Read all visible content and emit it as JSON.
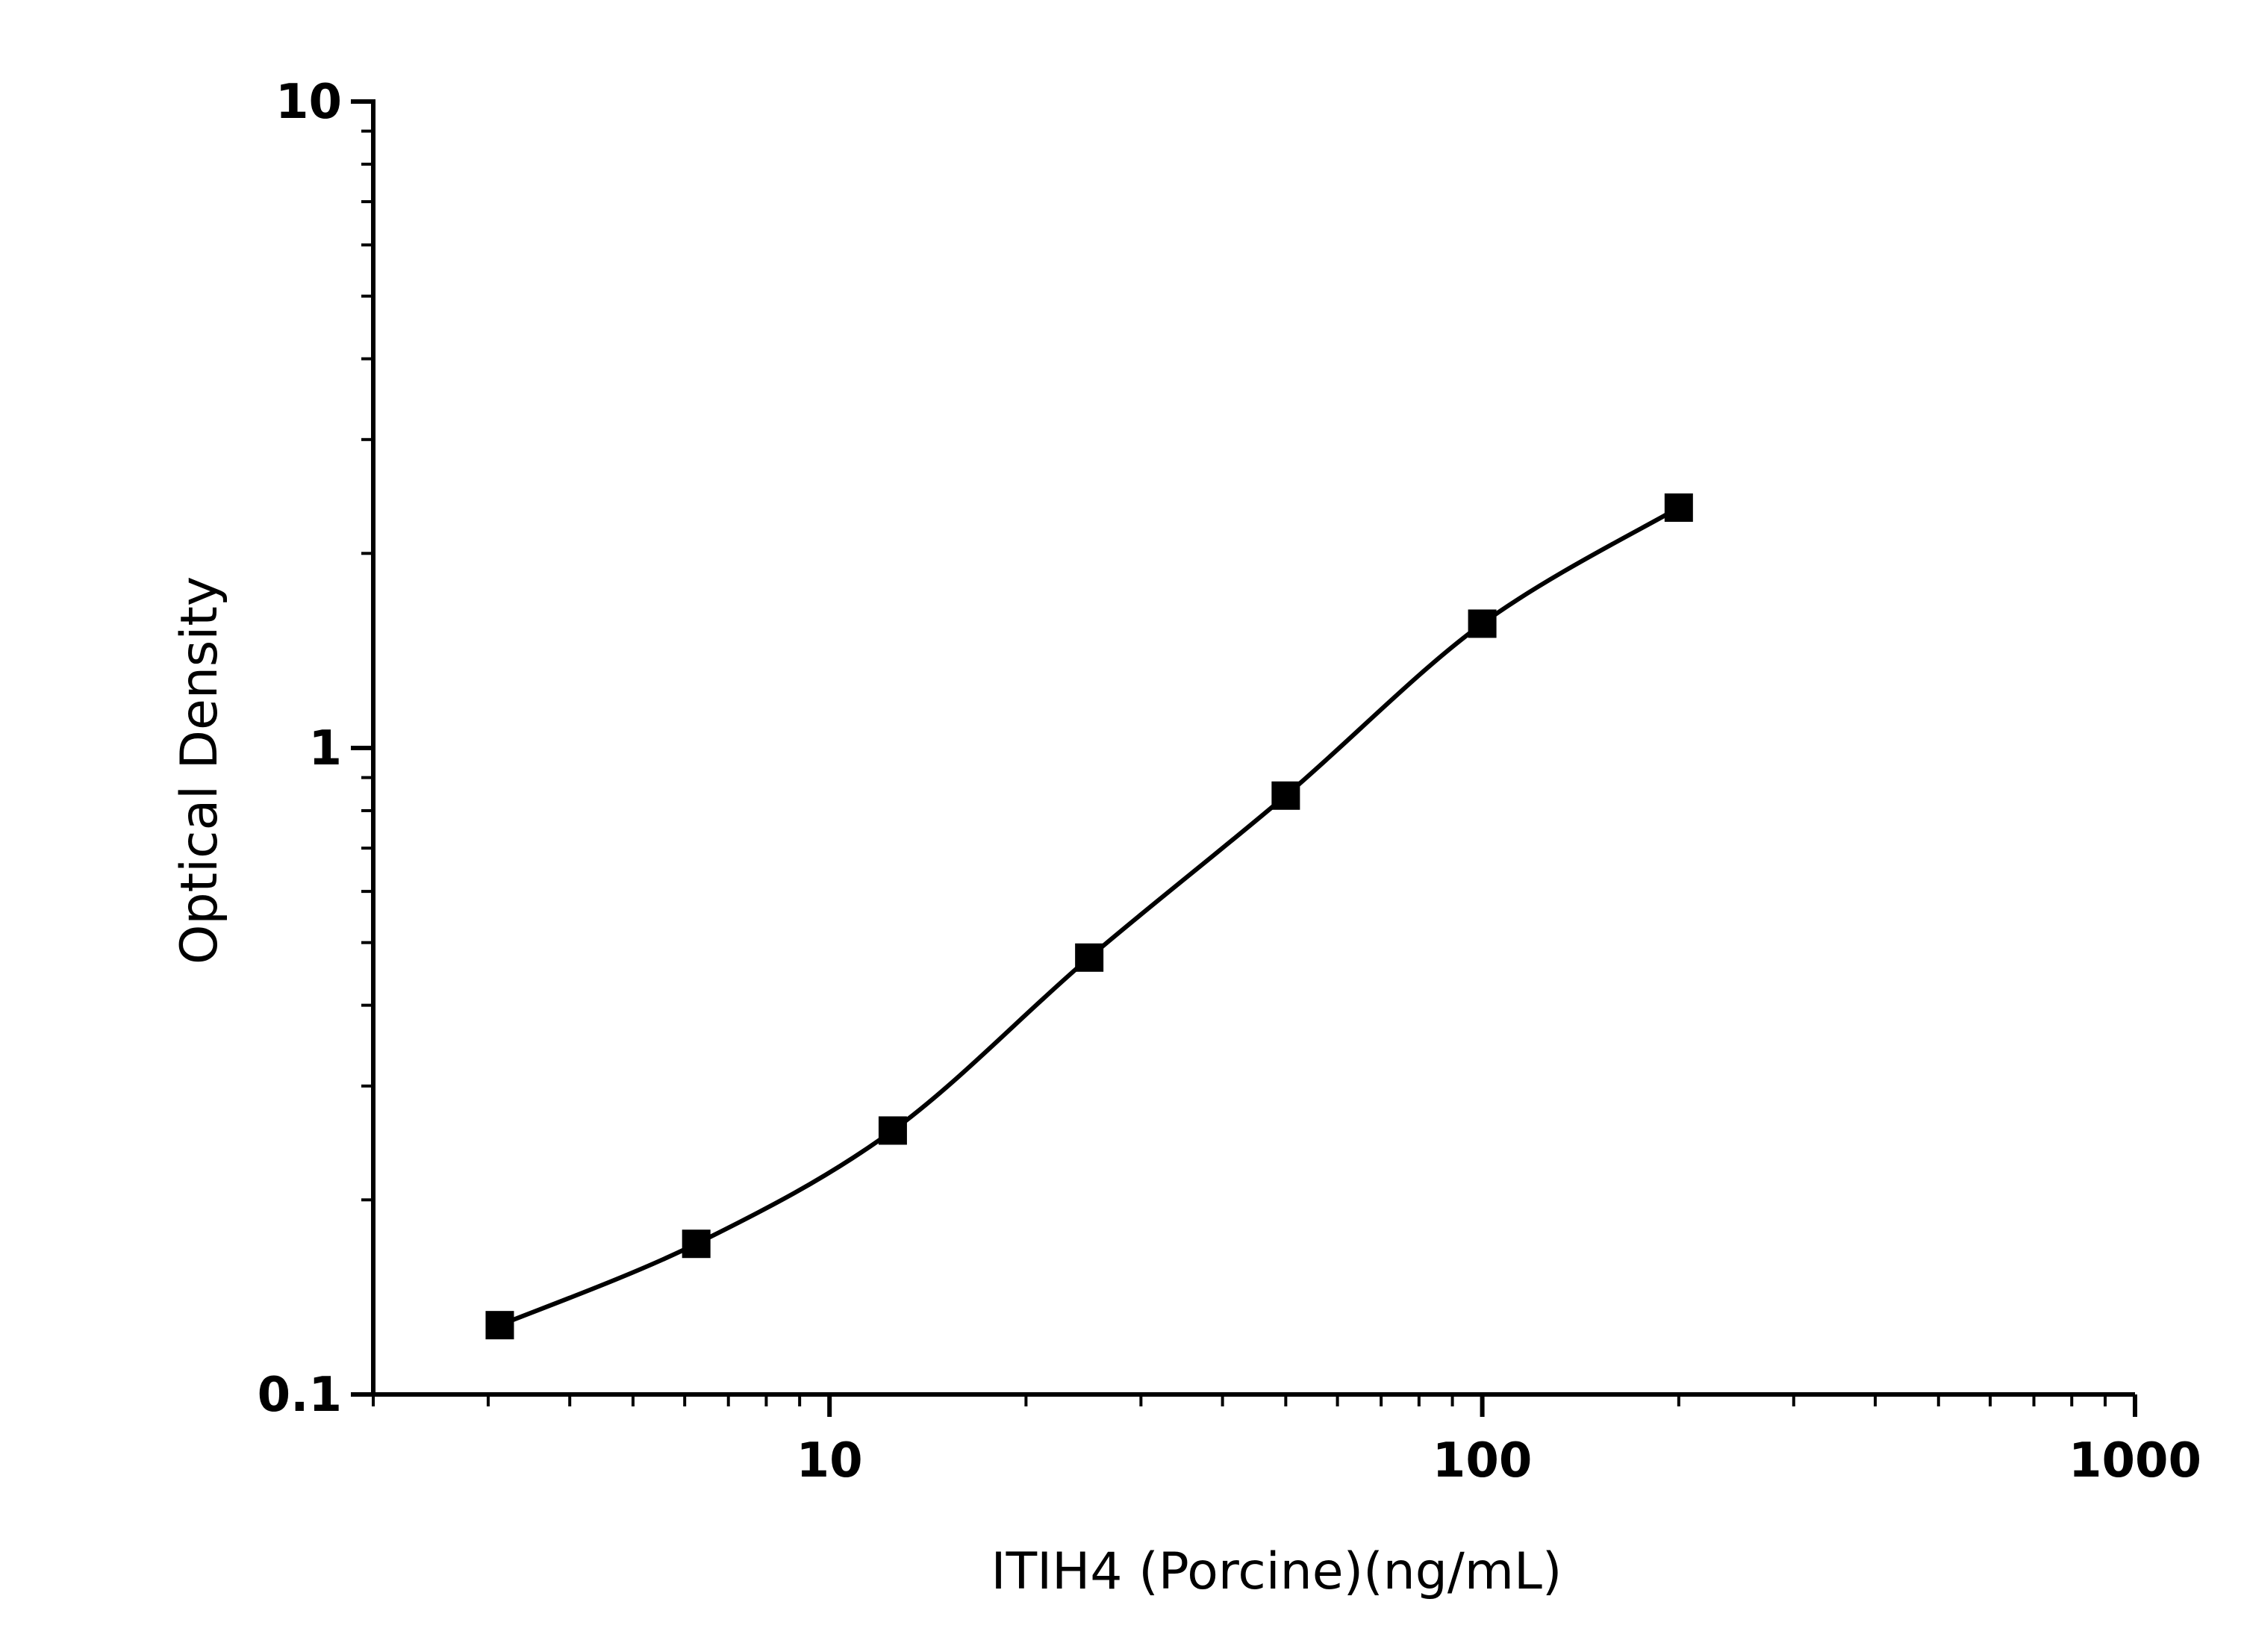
{
  "chart_data": {
    "type": "scatter",
    "xlabel": "ITIH4 (Porcine)(ng/mL)",
    "ylabel": "Optical Density",
    "xscale": "log",
    "yscale": "log",
    "xlim": [
      2,
      1000
    ],
    "ylim": [
      0.1,
      10
    ],
    "x_tick_labels": [
      "10",
      "100",
      "1000"
    ],
    "y_tick_labels": [
      "0.1",
      "1",
      "10"
    ],
    "grid": false,
    "legend": "none",
    "series": [
      {
        "marker": "square",
        "color": "#000000",
        "points": [
          {
            "x": 3.125,
            "y": 0.128
          },
          {
            "x": 6.25,
            "y": 0.171
          },
          {
            "x": 12.5,
            "y": 0.256
          },
          {
            "x": 25,
            "y": 0.474
          },
          {
            "x": 50,
            "y": 0.844
          },
          {
            "x": 100,
            "y": 1.557
          },
          {
            "x": 200,
            "y": 2.354
          }
        ],
        "fit_line": "smooth curve through points"
      }
    ]
  }
}
